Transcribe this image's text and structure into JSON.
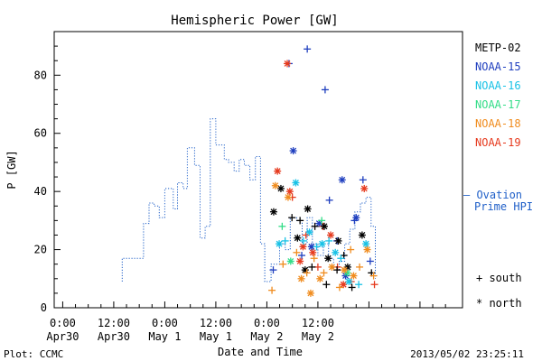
{
  "chart_data": {
    "type": "scatter",
    "title": "Hemispheric Power [GW]",
    "xlabel": "Date and Time",
    "ylabel": "P [GW]",
    "ylim": [
      0,
      95
    ],
    "xlim_hours": [
      -2,
      94
    ],
    "yticks": [
      0,
      20,
      40,
      60,
      80
    ],
    "xticks": [
      {
        "hour": 0,
        "line1": "0:00",
        "line2": "Apr30"
      },
      {
        "hour": 12,
        "line1": "12:00",
        "line2": "Apr30"
      },
      {
        "hour": 24,
        "line1": "0:00",
        "line2": "May 1"
      },
      {
        "hour": 36,
        "line1": "12:00",
        "line2": "May 1"
      },
      {
        "hour": 48,
        "line1": "0:00",
        "line2": "May 2"
      },
      {
        "hour": 60,
        "line1": "12:00",
        "line2": "May 2"
      }
    ],
    "legend": [
      {
        "name": "METP-02",
        "color": "#000000"
      },
      {
        "name": "NOAA-15",
        "color": "#1f3fbf"
      },
      {
        "name": "NOAA-16",
        "color": "#19c2e6"
      },
      {
        "name": "NOAA-17",
        "color": "#33dd88"
      },
      {
        "name": "NOAA-18",
        "color": "#f08c1e"
      },
      {
        "name": "NOAA-19",
        "color": "#e63a1e"
      }
    ],
    "ovation_label_line1": "— Ovation",
    "ovation_label_line2": "Prime HPI",
    "ovation_color": "#1f5fc8",
    "marker_legend": [
      {
        "symbol": "+",
        "label": "south"
      },
      {
        "symbol": "*",
        "label": "north"
      }
    ],
    "ovation_series": [
      [
        14,
        9
      ],
      [
        14,
        17
      ],
      [
        19,
        17
      ],
      [
        19,
        29
      ],
      [
        20.3,
        29
      ],
      [
        20.3,
        36
      ],
      [
        21.5,
        36
      ],
      [
        21.5,
        35
      ],
      [
        22.7,
        35
      ],
      [
        22.7,
        31
      ],
      [
        24,
        31
      ],
      [
        24,
        41
      ],
      [
        26,
        41
      ],
      [
        26,
        34
      ],
      [
        27,
        34
      ],
      [
        27,
        43
      ],
      [
        28.3,
        43
      ],
      [
        28.3,
        41
      ],
      [
        29.3,
        41
      ],
      [
        29.3,
        55
      ],
      [
        31,
        55
      ],
      [
        31,
        49
      ],
      [
        32.3,
        49
      ],
      [
        32.3,
        24
      ],
      [
        33.5,
        24
      ],
      [
        33.5,
        28
      ],
      [
        34.7,
        28
      ],
      [
        34.7,
        65
      ],
      [
        36,
        65
      ],
      [
        36,
        56
      ],
      [
        38,
        56
      ],
      [
        38,
        51
      ],
      [
        39,
        51
      ],
      [
        39,
        50
      ],
      [
        40.3,
        50
      ],
      [
        40.3,
        47
      ],
      [
        41.5,
        47
      ],
      [
        41.5,
        51
      ],
      [
        42.7,
        51
      ],
      [
        42.7,
        49
      ],
      [
        44,
        49
      ],
      [
        44,
        44
      ],
      [
        45.3,
        44
      ],
      [
        45.3,
        52
      ],
      [
        46.5,
        52
      ],
      [
        46.5,
        22
      ],
      [
        47.5,
        22
      ],
      [
        47.5,
        9
      ],
      [
        49,
        9
      ],
      [
        49,
        15
      ],
      [
        51,
        15
      ],
      [
        51,
        22
      ],
      [
        52.3,
        22
      ],
      [
        52.3,
        20
      ],
      [
        53.5,
        20
      ],
      [
        53.5,
        31
      ],
      [
        55,
        31
      ],
      [
        55,
        30
      ],
      [
        56.3,
        30
      ],
      [
        56.3,
        22
      ],
      [
        57.5,
        22
      ],
      [
        57.5,
        31
      ],
      [
        58.7,
        31
      ],
      [
        58.7,
        22
      ],
      [
        60,
        22
      ],
      [
        60,
        18
      ],
      [
        61.3,
        18
      ],
      [
        61.3,
        22
      ],
      [
        62.5,
        22
      ],
      [
        62.5,
        17
      ],
      [
        63.7,
        17
      ],
      [
        63.7,
        13
      ],
      [
        65,
        13
      ],
      [
        65,
        16
      ],
      [
        66.3,
        16
      ],
      [
        66.3,
        22
      ],
      [
        67.5,
        22
      ],
      [
        67.5,
        27
      ],
      [
        68.7,
        27
      ],
      [
        68.7,
        33
      ],
      [
        70,
        33
      ],
      [
        70,
        36
      ],
      [
        71.3,
        36
      ],
      [
        71.3,
        38
      ],
      [
        72.5,
        38
      ],
      [
        72.5,
        28
      ],
      [
        73.5,
        28
      ],
      [
        73.5,
        10
      ]
    ],
    "points": [
      {
        "sat": "NOAA-15",
        "m": "+",
        "x": 53.2,
        "y": 84
      },
      {
        "sat": "NOAA-15",
        "m": "+",
        "x": 57.5,
        "y": 89
      },
      {
        "sat": "NOAA-15",
        "m": "+",
        "x": 61.7,
        "y": 75
      },
      {
        "sat": "NOAA-15",
        "m": "*",
        "x": 54.2,
        "y": 54
      },
      {
        "sat": "NOAA-15",
        "m": "*",
        "x": 65.7,
        "y": 44
      },
      {
        "sat": "NOAA-15",
        "m": "+",
        "x": 62.7,
        "y": 37
      },
      {
        "sat": "NOAA-15",
        "m": "+",
        "x": 70.6,
        "y": 44
      },
      {
        "sat": "NOAA-15",
        "m": "*",
        "x": 69.0,
        "y": 31
      },
      {
        "sat": "NOAA-15",
        "m": "+",
        "x": 68.6,
        "y": 30
      },
      {
        "sat": "NOAA-15",
        "m": "+",
        "x": 49.5,
        "y": 13
      },
      {
        "sat": "NOAA-15",
        "m": "+",
        "x": 56.2,
        "y": 18
      },
      {
        "sat": "NOAA-15",
        "m": "*",
        "x": 60.3,
        "y": 29
      },
      {
        "sat": "NOAA-15",
        "m": "+",
        "x": 64.5,
        "y": 23
      },
      {
        "sat": "NOAA-15",
        "m": "*",
        "x": 66.5,
        "y": 11
      },
      {
        "sat": "NOAA-15",
        "m": "+",
        "x": 72.3,
        "y": 16
      },
      {
        "sat": "NOAA-15",
        "m": "*",
        "x": 58.5,
        "y": 21
      },
      {
        "sat": "NOAA-19",
        "m": "*",
        "x": 52.8,
        "y": 84
      },
      {
        "sat": "NOAA-19",
        "m": "*",
        "x": 50.5,
        "y": 47
      },
      {
        "sat": "NOAA-19",
        "m": "*",
        "x": 53.4,
        "y": 40
      },
      {
        "sat": "NOAA-19",
        "m": "+",
        "x": 54.0,
        "y": 38
      },
      {
        "sat": "NOAA-19",
        "m": "*",
        "x": 56.5,
        "y": 21
      },
      {
        "sat": "NOAA-19",
        "m": "+",
        "x": 57.2,
        "y": 25
      },
      {
        "sat": "NOAA-19",
        "m": "*",
        "x": 58.8,
        "y": 19
      },
      {
        "sat": "NOAA-19",
        "m": "+",
        "x": 61.2,
        "y": 28
      },
      {
        "sat": "NOAA-19",
        "m": "*",
        "x": 63.0,
        "y": 25
      },
      {
        "sat": "NOAA-19",
        "m": "+",
        "x": 64.6,
        "y": 14
      },
      {
        "sat": "NOAA-19",
        "m": "*",
        "x": 66.0,
        "y": 8
      },
      {
        "sat": "NOAA-19",
        "m": "+",
        "x": 67.8,
        "y": 9
      },
      {
        "sat": "NOAA-19",
        "m": "*",
        "x": 70.9,
        "y": 41
      },
      {
        "sat": "NOAA-19",
        "m": "+",
        "x": 73.3,
        "y": 8
      },
      {
        "sat": "NOAA-19",
        "m": "*",
        "x": 55.8,
        "y": 16
      },
      {
        "sat": "NOAA-19",
        "m": "+",
        "x": 60.0,
        "y": 14
      },
      {
        "sat": "METP-02",
        "m": "*",
        "x": 49.6,
        "y": 33
      },
      {
        "sat": "METP-02",
        "m": "*",
        "x": 51.3,
        "y": 41
      },
      {
        "sat": "METP-02",
        "m": "+",
        "x": 53.9,
        "y": 31
      },
      {
        "sat": "METP-02",
        "m": "*",
        "x": 55.2,
        "y": 24
      },
      {
        "sat": "METP-02",
        "m": "+",
        "x": 55.8,
        "y": 30
      },
      {
        "sat": "METP-02",
        "m": "*",
        "x": 57.6,
        "y": 34
      },
      {
        "sat": "METP-02",
        "m": "+",
        "x": 59.3,
        "y": 28
      },
      {
        "sat": "METP-02",
        "m": "*",
        "x": 61.5,
        "y": 28
      },
      {
        "sat": "METP-02",
        "m": "+",
        "x": 62.0,
        "y": 8
      },
      {
        "sat": "METP-02",
        "m": "*",
        "x": 62.4,
        "y": 17
      },
      {
        "sat": "METP-02",
        "m": "+",
        "x": 64.5,
        "y": 13
      },
      {
        "sat": "METP-02",
        "m": "*",
        "x": 64.8,
        "y": 23
      },
      {
        "sat": "METP-02",
        "m": "+",
        "x": 66.1,
        "y": 18
      },
      {
        "sat": "METP-02",
        "m": "*",
        "x": 67.0,
        "y": 14
      },
      {
        "sat": "METP-02",
        "m": "+",
        "x": 68.0,
        "y": 7
      },
      {
        "sat": "METP-02",
        "m": "*",
        "x": 70.4,
        "y": 25
      },
      {
        "sat": "METP-02",
        "m": "+",
        "x": 72.6,
        "y": 12
      },
      {
        "sat": "METP-02",
        "m": "*",
        "x": 57.0,
        "y": 13
      },
      {
        "sat": "METP-02",
        "m": "+",
        "x": 58.6,
        "y": 14
      },
      {
        "sat": "NOAA-16",
        "m": "*",
        "x": 50.9,
        "y": 22
      },
      {
        "sat": "NOAA-16",
        "m": "+",
        "x": 52.3,
        "y": 23
      },
      {
        "sat": "NOAA-16",
        "m": "*",
        "x": 54.8,
        "y": 43
      },
      {
        "sat": "NOAA-16",
        "m": "+",
        "x": 56.6,
        "y": 23
      },
      {
        "sat": "NOAA-16",
        "m": "*",
        "x": 58.0,
        "y": 26
      },
      {
        "sat": "NOAA-16",
        "m": "+",
        "x": 59.7,
        "y": 21
      },
      {
        "sat": "NOAA-16",
        "m": "*",
        "x": 61.0,
        "y": 22
      },
      {
        "sat": "NOAA-16",
        "m": "+",
        "x": 62.6,
        "y": 23
      },
      {
        "sat": "NOAA-16",
        "m": "*",
        "x": 64.1,
        "y": 19
      },
      {
        "sat": "NOAA-16",
        "m": "+",
        "x": 65.4,
        "y": 17
      },
      {
        "sat": "NOAA-16",
        "m": "*",
        "x": 67.3,
        "y": 9
      },
      {
        "sat": "NOAA-16",
        "m": "+",
        "x": 69.6,
        "y": 8
      },
      {
        "sat": "NOAA-16",
        "m": "*",
        "x": 71.3,
        "y": 22
      },
      {
        "sat": "NOAA-17",
        "m": "+",
        "x": 51.6,
        "y": 28
      },
      {
        "sat": "NOAA-17",
        "m": "*",
        "x": 53.6,
        "y": 16
      },
      {
        "sat": "NOAA-17",
        "m": "+",
        "x": 60.9,
        "y": 30
      },
      {
        "sat": "NOAA-17",
        "m": "*",
        "x": 66.9,
        "y": 12
      },
      {
        "sat": "NOAA-18",
        "m": "+",
        "x": 49.2,
        "y": 6
      },
      {
        "sat": "NOAA-18",
        "m": "*",
        "x": 50.0,
        "y": 42
      },
      {
        "sat": "NOAA-18",
        "m": "+",
        "x": 51.8,
        "y": 15
      },
      {
        "sat": "NOAA-18",
        "m": "*",
        "x": 53.0,
        "y": 38
      },
      {
        "sat": "NOAA-18",
        "m": "+",
        "x": 55.0,
        "y": 19
      },
      {
        "sat": "NOAA-18",
        "m": "*",
        "x": 56.1,
        "y": 10
      },
      {
        "sat": "NOAA-18",
        "m": "+",
        "x": 57.4,
        "y": 12
      },
      {
        "sat": "NOAA-18",
        "m": "*",
        "x": 58.3,
        "y": 5
      },
      {
        "sat": "NOAA-18",
        "m": "+",
        "x": 59.1,
        "y": 17
      },
      {
        "sat": "NOAA-18",
        "m": "*",
        "x": 60.5,
        "y": 10
      },
      {
        "sat": "NOAA-18",
        "m": "+",
        "x": 61.4,
        "y": 12
      },
      {
        "sat": "NOAA-18",
        "m": "*",
        "x": 63.3,
        "y": 14
      },
      {
        "sat": "NOAA-18",
        "m": "+",
        "x": 65.1,
        "y": 7
      },
      {
        "sat": "NOAA-18",
        "m": "*",
        "x": 66.2,
        "y": 13
      },
      {
        "sat": "NOAA-18",
        "m": "+",
        "x": 67.7,
        "y": 20
      },
      {
        "sat": "NOAA-18",
        "m": "*",
        "x": 68.4,
        "y": 11
      },
      {
        "sat": "NOAA-18",
        "m": "+",
        "x": 69.8,
        "y": 14
      },
      {
        "sat": "NOAA-18",
        "m": "*",
        "x": 71.6,
        "y": 20
      },
      {
        "sat": "NOAA-18",
        "m": "+",
        "x": 73.1,
        "y": 11
      }
    ]
  },
  "footer": {
    "left": "Plot: CCMC",
    "right": "2013/05/02 23:25:11"
  }
}
